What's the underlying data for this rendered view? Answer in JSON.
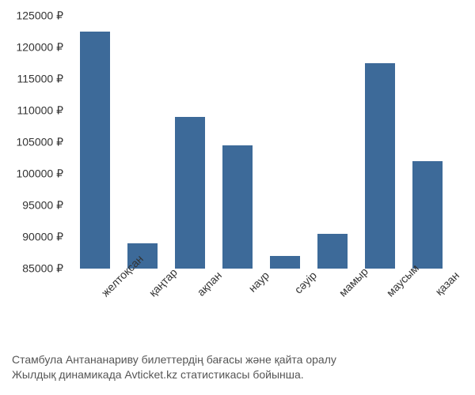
{
  "chart": {
    "type": "bar",
    "categories": [
      "желтоқсан",
      "қаңтар",
      "ақпан",
      "наур",
      "сәуір",
      "мамыр",
      "маусым",
      "қазан"
    ],
    "values": [
      122500,
      89000,
      109000,
      104500,
      87000,
      90500,
      117500,
      102000
    ],
    "bar_color": "#3d6a99",
    "background_color": "#ffffff",
    "ylim_min": 85000,
    "ylim_max": 125000,
    "ytick_step": 5000,
    "currency_symbol": "₽",
    "yticks": [
      85000,
      90000,
      95000,
      100000,
      105000,
      110000,
      115000,
      120000,
      125000
    ],
    "label_fontsize": 14,
    "x_label_rotation": -45
  },
  "caption": {
    "line1": "Стамбула Антананариву билеттердің бағасы және қайта оралу",
    "line2": "Жылдық динамикада Avticket.kz статистикасы бойынша."
  }
}
